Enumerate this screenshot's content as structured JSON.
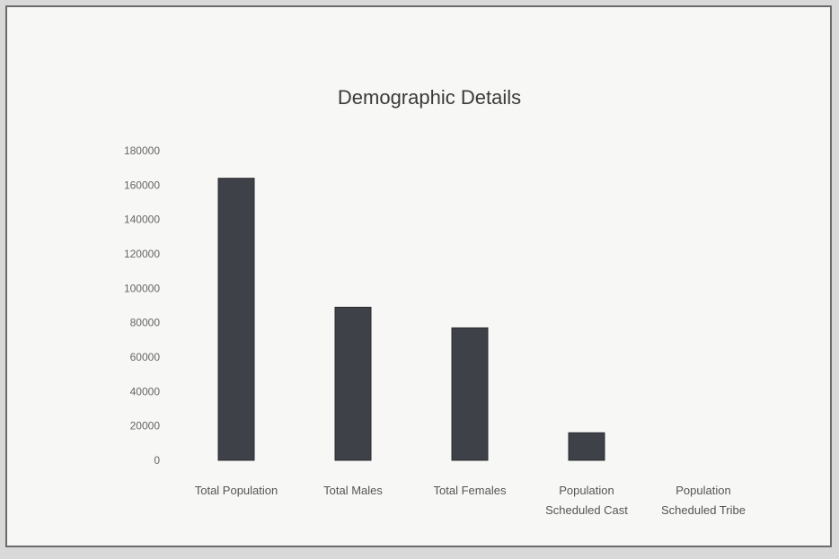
{
  "chart_data": {
    "type": "bar",
    "title": "Demographic Details",
    "categories": [
      [
        "Total Population"
      ],
      [
        "Total Males"
      ],
      [
        "Total Females"
      ],
      [
        "Population",
        "Scheduled Cast"
      ],
      [
        "Population",
        "Scheduled Tribe"
      ]
    ],
    "values": [
      164000,
      89000,
      77000,
      16000,
      0
    ],
    "ylim": [
      0,
      180000
    ],
    "yticks": [
      0,
      20000,
      40000,
      60000,
      80000,
      100000,
      120000,
      140000,
      160000,
      180000
    ],
    "grid": false,
    "legend": "none",
    "colors": {
      "bar": "#3f4148",
      "background": "#f7f7f5"
    }
  }
}
